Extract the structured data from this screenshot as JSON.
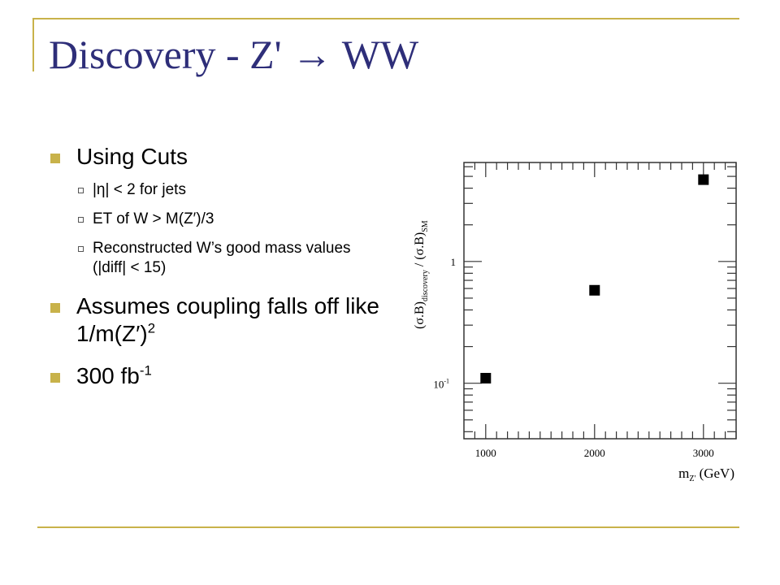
{
  "slide": {
    "title": "Discovery - Z' → WW",
    "bullets": [
      {
        "text": "Using Cuts"
      },
      {
        "sub": [
          "|η| < 2 for jets",
          "ET of W > M(Z′)/3",
          "Reconstructed W’s good mass values (|diff| < 15)"
        ]
      },
      {
        "text": "Assumes coupling falls off like 1/m(Z′)",
        "sup": "2"
      },
      {
        "text": "300 fb",
        "sup": "-1"
      }
    ]
  },
  "chart_data": {
    "type": "scatter",
    "xlabel": "m_Z' (GeV)",
    "ylabel": "(σ.B)_discovery / (σ.B)_SM",
    "x_ticks": [
      "1000",
      "2000",
      "3000"
    ],
    "y_ticks": [
      "10^-1",
      "1"
    ],
    "y_scale": "log",
    "xlim": [
      800,
      3300
    ],
    "ylim": [
      0.035,
      6.5
    ],
    "grid": false,
    "marker": "square",
    "marker_color": "#000000",
    "series": [
      {
        "x": [
          1000,
          2000,
          3000
        ],
        "y": [
          0.11,
          0.58,
          4.7
        ]
      }
    ]
  }
}
